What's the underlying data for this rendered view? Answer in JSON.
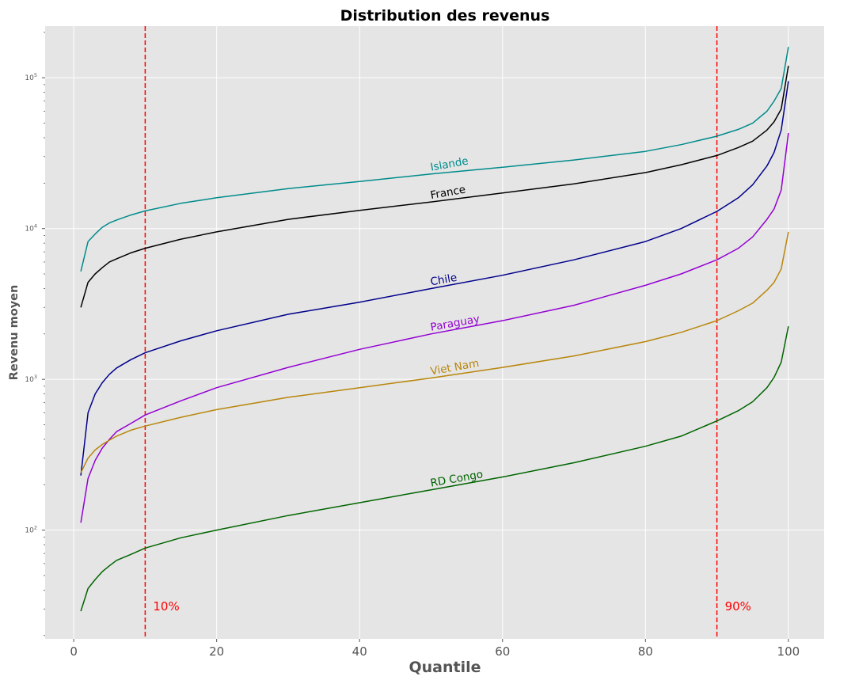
{
  "chart_data": {
    "type": "line",
    "title": "Distribution des revenus",
    "xlabel": "Quantile",
    "ylabel": "Revenu moyen",
    "xlim": [
      -4,
      105
    ],
    "ylim": [
      19,
      220000
    ],
    "yscale": "log",
    "xticks": [
      0,
      20,
      40,
      60,
      80,
      100
    ],
    "xtick_labels": [
      "0",
      "20",
      "40",
      "60",
      "80",
      "100"
    ],
    "yticks": [
      100,
      1000,
      10000,
      100000
    ],
    "ytick_labels": [
      {
        "base": "10",
        "exp": "2"
      },
      {
        "base": "10",
        "exp": "3"
      },
      {
        "base": "10",
        "exp": "4"
      },
      {
        "base": "10",
        "exp": "5"
      }
    ],
    "grid": true,
    "background": "#e5e5e5",
    "reference_lines": [
      {
        "x": 10,
        "label": "10%",
        "color": "#ff0000"
      },
      {
        "x": 90,
        "label": "90%",
        "color": "#ff0000"
      }
    ],
    "series": [
      {
        "name": "Islande",
        "color": "#008b8b",
        "label_at": 50,
        "points": [
          [
            1,
            5200
          ],
          [
            2,
            8200
          ],
          [
            3,
            9200
          ],
          [
            4,
            10200
          ],
          [
            5,
            10900
          ],
          [
            6,
            11400
          ],
          [
            8,
            12300
          ],
          [
            10,
            13100
          ],
          [
            15,
            14700
          ],
          [
            20,
            16000
          ],
          [
            30,
            18400
          ],
          [
            40,
            20500
          ],
          [
            50,
            23000
          ],
          [
            60,
            25500
          ],
          [
            70,
            28500
          ],
          [
            80,
            32500
          ],
          [
            85,
            36000
          ],
          [
            90,
            41000
          ],
          [
            93,
            45500
          ],
          [
            95,
            50000
          ],
          [
            97,
            60000
          ],
          [
            98,
            70000
          ],
          [
            99,
            85000
          ],
          [
            100,
            160000
          ]
        ]
      },
      {
        "name": "France",
        "color": "#000000",
        "label_at": 50,
        "points": [
          [
            1,
            3000
          ],
          [
            2,
            4400
          ],
          [
            3,
            5000
          ],
          [
            4,
            5500
          ],
          [
            5,
            6000
          ],
          [
            6,
            6300
          ],
          [
            8,
            6900
          ],
          [
            10,
            7400
          ],
          [
            15,
            8500
          ],
          [
            20,
            9500
          ],
          [
            30,
            11500
          ],
          [
            40,
            13200
          ],
          [
            50,
            15000
          ],
          [
            60,
            17200
          ],
          [
            70,
            19800
          ],
          [
            80,
            23500
          ],
          [
            85,
            26500
          ],
          [
            90,
            30500
          ],
          [
            93,
            34500
          ],
          [
            95,
            38000
          ],
          [
            97,
            45000
          ],
          [
            98,
            51000
          ],
          [
            99,
            62000
          ],
          [
            100,
            120000
          ]
        ]
      },
      {
        "name": "Chile",
        "color": "#00008b",
        "label_at": 50,
        "points": [
          [
            1,
            230
          ],
          [
            2,
            600
          ],
          [
            3,
            800
          ],
          [
            4,
            950
          ],
          [
            5,
            1080
          ],
          [
            6,
            1190
          ],
          [
            8,
            1350
          ],
          [
            10,
            1500
          ],
          [
            15,
            1800
          ],
          [
            20,
            2100
          ],
          [
            30,
            2700
          ],
          [
            40,
            3250
          ],
          [
            50,
            4000
          ],
          [
            60,
            4900
          ],
          [
            70,
            6200
          ],
          [
            80,
            8200
          ],
          [
            85,
            10000
          ],
          [
            90,
            13000
          ],
          [
            93,
            16000
          ],
          [
            95,
            19500
          ],
          [
            97,
            26000
          ],
          [
            98,
            32000
          ],
          [
            99,
            45000
          ],
          [
            100,
            95000
          ]
        ]
      },
      {
        "name": "Paraguay",
        "color": "#9400d3",
        "label_at": 50,
        "points": [
          [
            1,
            112
          ],
          [
            2,
            220
          ],
          [
            3,
            290
          ],
          [
            4,
            350
          ],
          [
            5,
            400
          ],
          [
            6,
            450
          ],
          [
            8,
            510
          ],
          [
            10,
            580
          ],
          [
            15,
            720
          ],
          [
            20,
            880
          ],
          [
            30,
            1200
          ],
          [
            40,
            1580
          ],
          [
            50,
            2000
          ],
          [
            60,
            2450
          ],
          [
            70,
            3100
          ],
          [
            80,
            4200
          ],
          [
            85,
            5000
          ],
          [
            90,
            6200
          ],
          [
            93,
            7400
          ],
          [
            95,
            8800
          ],
          [
            97,
            11500
          ],
          [
            98,
            13500
          ],
          [
            99,
            18000
          ],
          [
            100,
            43000
          ]
        ]
      },
      {
        "name": "Viet Nam",
        "color": "#b8860b",
        "label_at": 50,
        "points": [
          [
            1,
            240
          ],
          [
            2,
            300
          ],
          [
            3,
            340
          ],
          [
            4,
            370
          ],
          [
            5,
            395
          ],
          [
            6,
            420
          ],
          [
            8,
            460
          ],
          [
            10,
            490
          ],
          [
            15,
            560
          ],
          [
            20,
            630
          ],
          [
            30,
            760
          ],
          [
            40,
            880
          ],
          [
            50,
            1020
          ],
          [
            60,
            1200
          ],
          [
            70,
            1430
          ],
          [
            80,
            1780
          ],
          [
            85,
            2050
          ],
          [
            90,
            2450
          ],
          [
            93,
            2850
          ],
          [
            95,
            3200
          ],
          [
            97,
            3900
          ],
          [
            98,
            4400
          ],
          [
            99,
            5400
          ],
          [
            100,
            9500
          ]
        ]
      },
      {
        "name": "RD Congo",
        "color": "#006400",
        "label_at": 50,
        "points": [
          [
            1,
            29
          ],
          [
            2,
            41
          ],
          [
            3,
            47
          ],
          [
            4,
            53
          ],
          [
            5,
            58
          ],
          [
            6,
            63
          ],
          [
            8,
            69
          ],
          [
            10,
            76
          ],
          [
            15,
            89
          ],
          [
            20,
            100
          ],
          [
            30,
            125
          ],
          [
            40,
            152
          ],
          [
            50,
            185
          ],
          [
            60,
            225
          ],
          [
            70,
            280
          ],
          [
            80,
            360
          ],
          [
            85,
            420
          ],
          [
            90,
            530
          ],
          [
            93,
            620
          ],
          [
            95,
            710
          ],
          [
            97,
            880
          ],
          [
            98,
            1030
          ],
          [
            99,
            1300
          ],
          [
            100,
            2250
          ]
        ]
      }
    ]
  }
}
